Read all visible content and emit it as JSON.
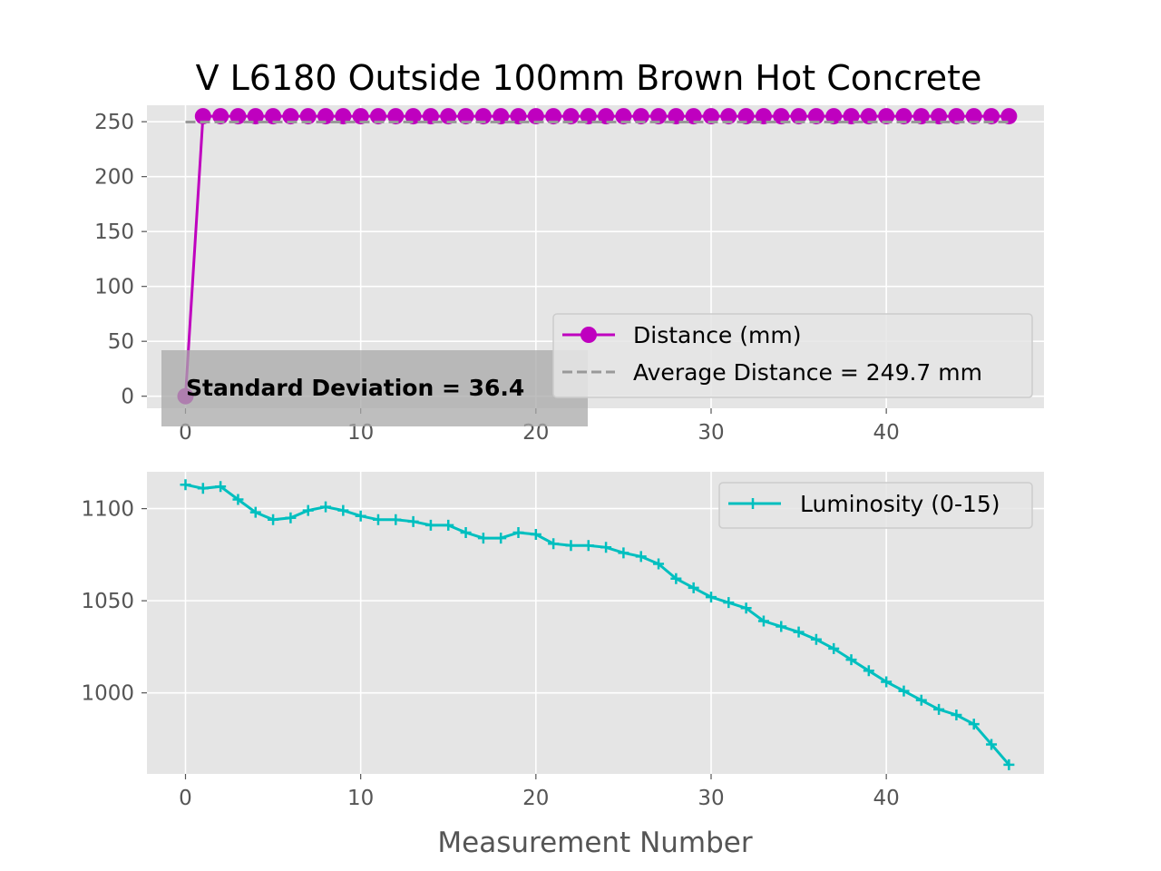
{
  "chart_data": [
    {
      "type": "line",
      "title": "V L6180 Outside 100mm Brown Hot Concrete",
      "xlim": [
        -2.2,
        49
      ],
      "ylim": [
        -11,
        265
      ],
      "xticks": [
        0,
        10,
        20,
        30,
        40
      ],
      "yticks": [
        0,
        50,
        100,
        150,
        200,
        250
      ],
      "grid": true,
      "legend_position": "lower right",
      "series": [
        {
          "name": "Distance (mm)",
          "color": "#bf00bf",
          "marker": "circle",
          "x": [
            0,
            1,
            2,
            3,
            4,
            5,
            6,
            7,
            8,
            9,
            10,
            11,
            12,
            13,
            14,
            15,
            16,
            17,
            18,
            19,
            20,
            21,
            22,
            23,
            24,
            25,
            26,
            27,
            28,
            29,
            30,
            31,
            32,
            33,
            34,
            35,
            36,
            37,
            38,
            39,
            40,
            41,
            42,
            43,
            44,
            45,
            46,
            47
          ],
          "values": [
            0,
            255,
            255,
            255,
            255,
            255,
            255,
            255,
            255,
            255,
            255,
            255,
            255,
            255,
            255,
            255,
            255,
            255,
            255,
            255,
            255,
            255,
            255,
            255,
            255,
            255,
            255,
            255,
            255,
            255,
            255,
            255,
            255,
            255,
            255,
            255,
            255,
            255,
            255,
            255,
            255,
            255,
            255,
            255,
            255,
            255,
            255,
            255
          ]
        },
        {
          "name": "Average Distance = 249.7 mm",
          "color": "#999999",
          "style": "dashed",
          "x": [
            0,
            47
          ],
          "values": [
            249.7,
            249.7
          ]
        }
      ],
      "annotation": "Standard Deviation = 36.4"
    },
    {
      "type": "line",
      "xlabel": "Measurement Number",
      "xlim": [
        -2.2,
        49
      ],
      "ylim": [
        956,
        1120
      ],
      "xticks": [
        0,
        10,
        20,
        30,
        40
      ],
      "yticks": [
        1000,
        1050,
        1100
      ],
      "grid": true,
      "legend_position": "upper right",
      "series": [
        {
          "name": "Luminosity (0-15)",
          "color": "#00bfbf",
          "marker": "plus",
          "x": [
            0,
            1,
            2,
            3,
            4,
            5,
            6,
            7,
            8,
            9,
            10,
            11,
            12,
            13,
            14,
            15,
            16,
            17,
            18,
            19,
            20,
            21,
            22,
            23,
            24,
            25,
            26,
            27,
            28,
            29,
            30,
            31,
            32,
            33,
            34,
            35,
            36,
            37,
            38,
            39,
            40,
            41,
            42,
            43,
            44,
            45,
            46,
            47
          ],
          "values": [
            1113,
            1111,
            1112,
            1105,
            1098,
            1094,
            1095,
            1099,
            1101,
            1099,
            1096,
            1094,
            1094,
            1093,
            1091,
            1091,
            1087,
            1084,
            1084,
            1087,
            1086,
            1081,
            1080,
            1080,
            1079,
            1076,
            1074,
            1070,
            1062,
            1057,
            1052,
            1049,
            1046,
            1039,
            1036,
            1033,
            1029,
            1024,
            1018,
            1012,
            1006,
            1001,
            996,
            991,
            988,
            983,
            972,
            961
          ]
        }
      ]
    }
  ]
}
